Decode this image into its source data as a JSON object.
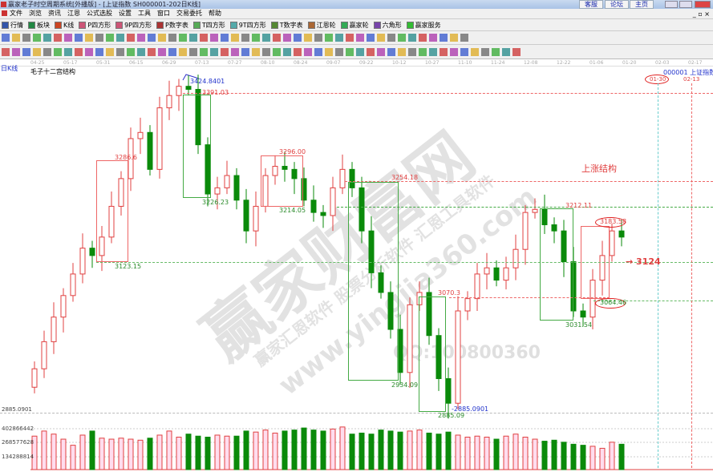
{
  "window": {
    "title": "赢家老子时空周期系统[外播版] - [上证指数 SH000001-202日K线]",
    "links": [
      "客服",
      "论坛",
      "主页"
    ]
  },
  "menu": [
    "文件",
    "浏览",
    "资讯",
    "江恩",
    "公式选股",
    "设置",
    "工具",
    "窗口",
    "交易委托",
    "帮助"
  ],
  "toolbar": [
    {
      "label": "行情",
      "icon": "quote-icon",
      "color": "#3355aa"
    },
    {
      "label": "板块",
      "icon": "sector-icon",
      "color": "#228844"
    },
    {
      "label": "K线",
      "icon": "kline-icon",
      "color": "#cc4422"
    },
    {
      "label": "P四方形",
      "icon": "p-square-icon",
      "color": "#cc5577"
    },
    {
      "label": "9P四方形",
      "icon": "9p-square-icon",
      "color": "#cc5577"
    },
    {
      "label": "P数字表",
      "icon": "p-table-icon",
      "color": "#aa3333"
    },
    {
      "label": "T四方形",
      "icon": "t-square-icon",
      "color": "#55aa55"
    },
    {
      "label": "9T四方形",
      "icon": "9t-square-icon",
      "color": "#55aaaa"
    },
    {
      "label": "T数字表",
      "icon": "t-table-icon",
      "color": "#558833"
    },
    {
      "label": "江恩轮",
      "icon": "gann-wheel-icon",
      "color": "#aa6633"
    },
    {
      "label": "赢家轮",
      "icon": "winner-wheel-icon",
      "color": "#33aa55"
    },
    {
      "label": "六角形",
      "icon": "hexagon-icon",
      "color": "#7744aa"
    },
    {
      "label": "赢家服务",
      "icon": "dollar-icon",
      "color": "#33bb33"
    }
  ],
  "chart": {
    "period_label": "日K线",
    "structure_title": "毛子十二宫结构",
    "symbol": "000001",
    "symbol_name": "上证指数",
    "marker_dates": [
      "01-30",
      "02-13"
    ],
    "price_scale_label": "2885.0901",
    "volume_ticks": [
      "402866442",
      "268577628",
      "134288814"
    ],
    "dates": [
      "04-25",
      "05-17",
      "05-31",
      "06-15",
      "06-29",
      "07-13",
      "07-27",
      "08-10",
      "08-24",
      "09-07",
      "09-22",
      "10-12",
      "10-27",
      "11-10",
      "11-24",
      "12-08",
      "12-22",
      "01-06",
      "01-20",
      "02-03",
      "02-17"
    ],
    "annotations": {
      "high": "3424.8401",
      "low": "-2885.0901",
      "a": "3286.6",
      "b": "3123.15",
      "c": "3391.03",
      "d": "3226.23",
      "e": "3296.00",
      "f": "3214.05",
      "g": "3254.18",
      "h": "2934.09",
      "i": "3070.3",
      "j": "2885.09",
      "k": "3212.11",
      "l": "3031.54",
      "m": "3183.58",
      "n": "3064.46",
      "rise": "上涨结构",
      "target": "3124"
    },
    "colors": {
      "up": "#e04040",
      "down": "#0a8a0a"
    }
  },
  "chart_data": {
    "type": "candlestick",
    "closes": [
      2956,
      3000,
      3040,
      3075,
      3110,
      3152,
      3140,
      3170,
      3220,
      3265,
      3330,
      3340,
      3280,
      3380,
      3400,
      3415,
      3410,
      3320,
      3240,
      3250,
      3270,
      3230,
      3180,
      3220,
      3270,
      3285,
      3280,
      3265,
      3230,
      3210,
      3205,
      3250,
      3280,
      3250,
      3180,
      3112,
      3080,
      3020,
      2950,
      3060,
      3080,
      3010,
      2940,
      2900,
      3050,
      3070,
      3110,
      3120,
      3100,
      3120,
      3150,
      3210,
      3215,
      3190,
      3180,
      3130,
      3050,
      3040,
      3100,
      3140,
      3180,
      3170
    ],
    "volumes": [
      330,
      380,
      350,
      300,
      240,
      340,
      380,
      310,
      300,
      310,
      300,
      290,
      310,
      340,
      380,
      320,
      350,
      330,
      320,
      340,
      330,
      330,
      380,
      370,
      390,
      360,
      380,
      390,
      410,
      390,
      380,
      400,
      420,
      350,
      360,
      350,
      390,
      380,
      370,
      380,
      390,
      360,
      350,
      370,
      340,
      320,
      330,
      320,
      300,
      330,
      350,
      320,
      300,
      280,
      290,
      270,
      250,
      240,
      230,
      210,
      270,
      250
    ],
    "volume_unit": "million",
    "ylim": [
      2885,
      3425
    ]
  },
  "watermark": {
    "big": "赢家财富网",
    "site": "www.yingjia360.com",
    "qq": "QQ:100800360",
    "line": "赢家汇恩软件 股票分析软件 汇恩工具软件"
  }
}
